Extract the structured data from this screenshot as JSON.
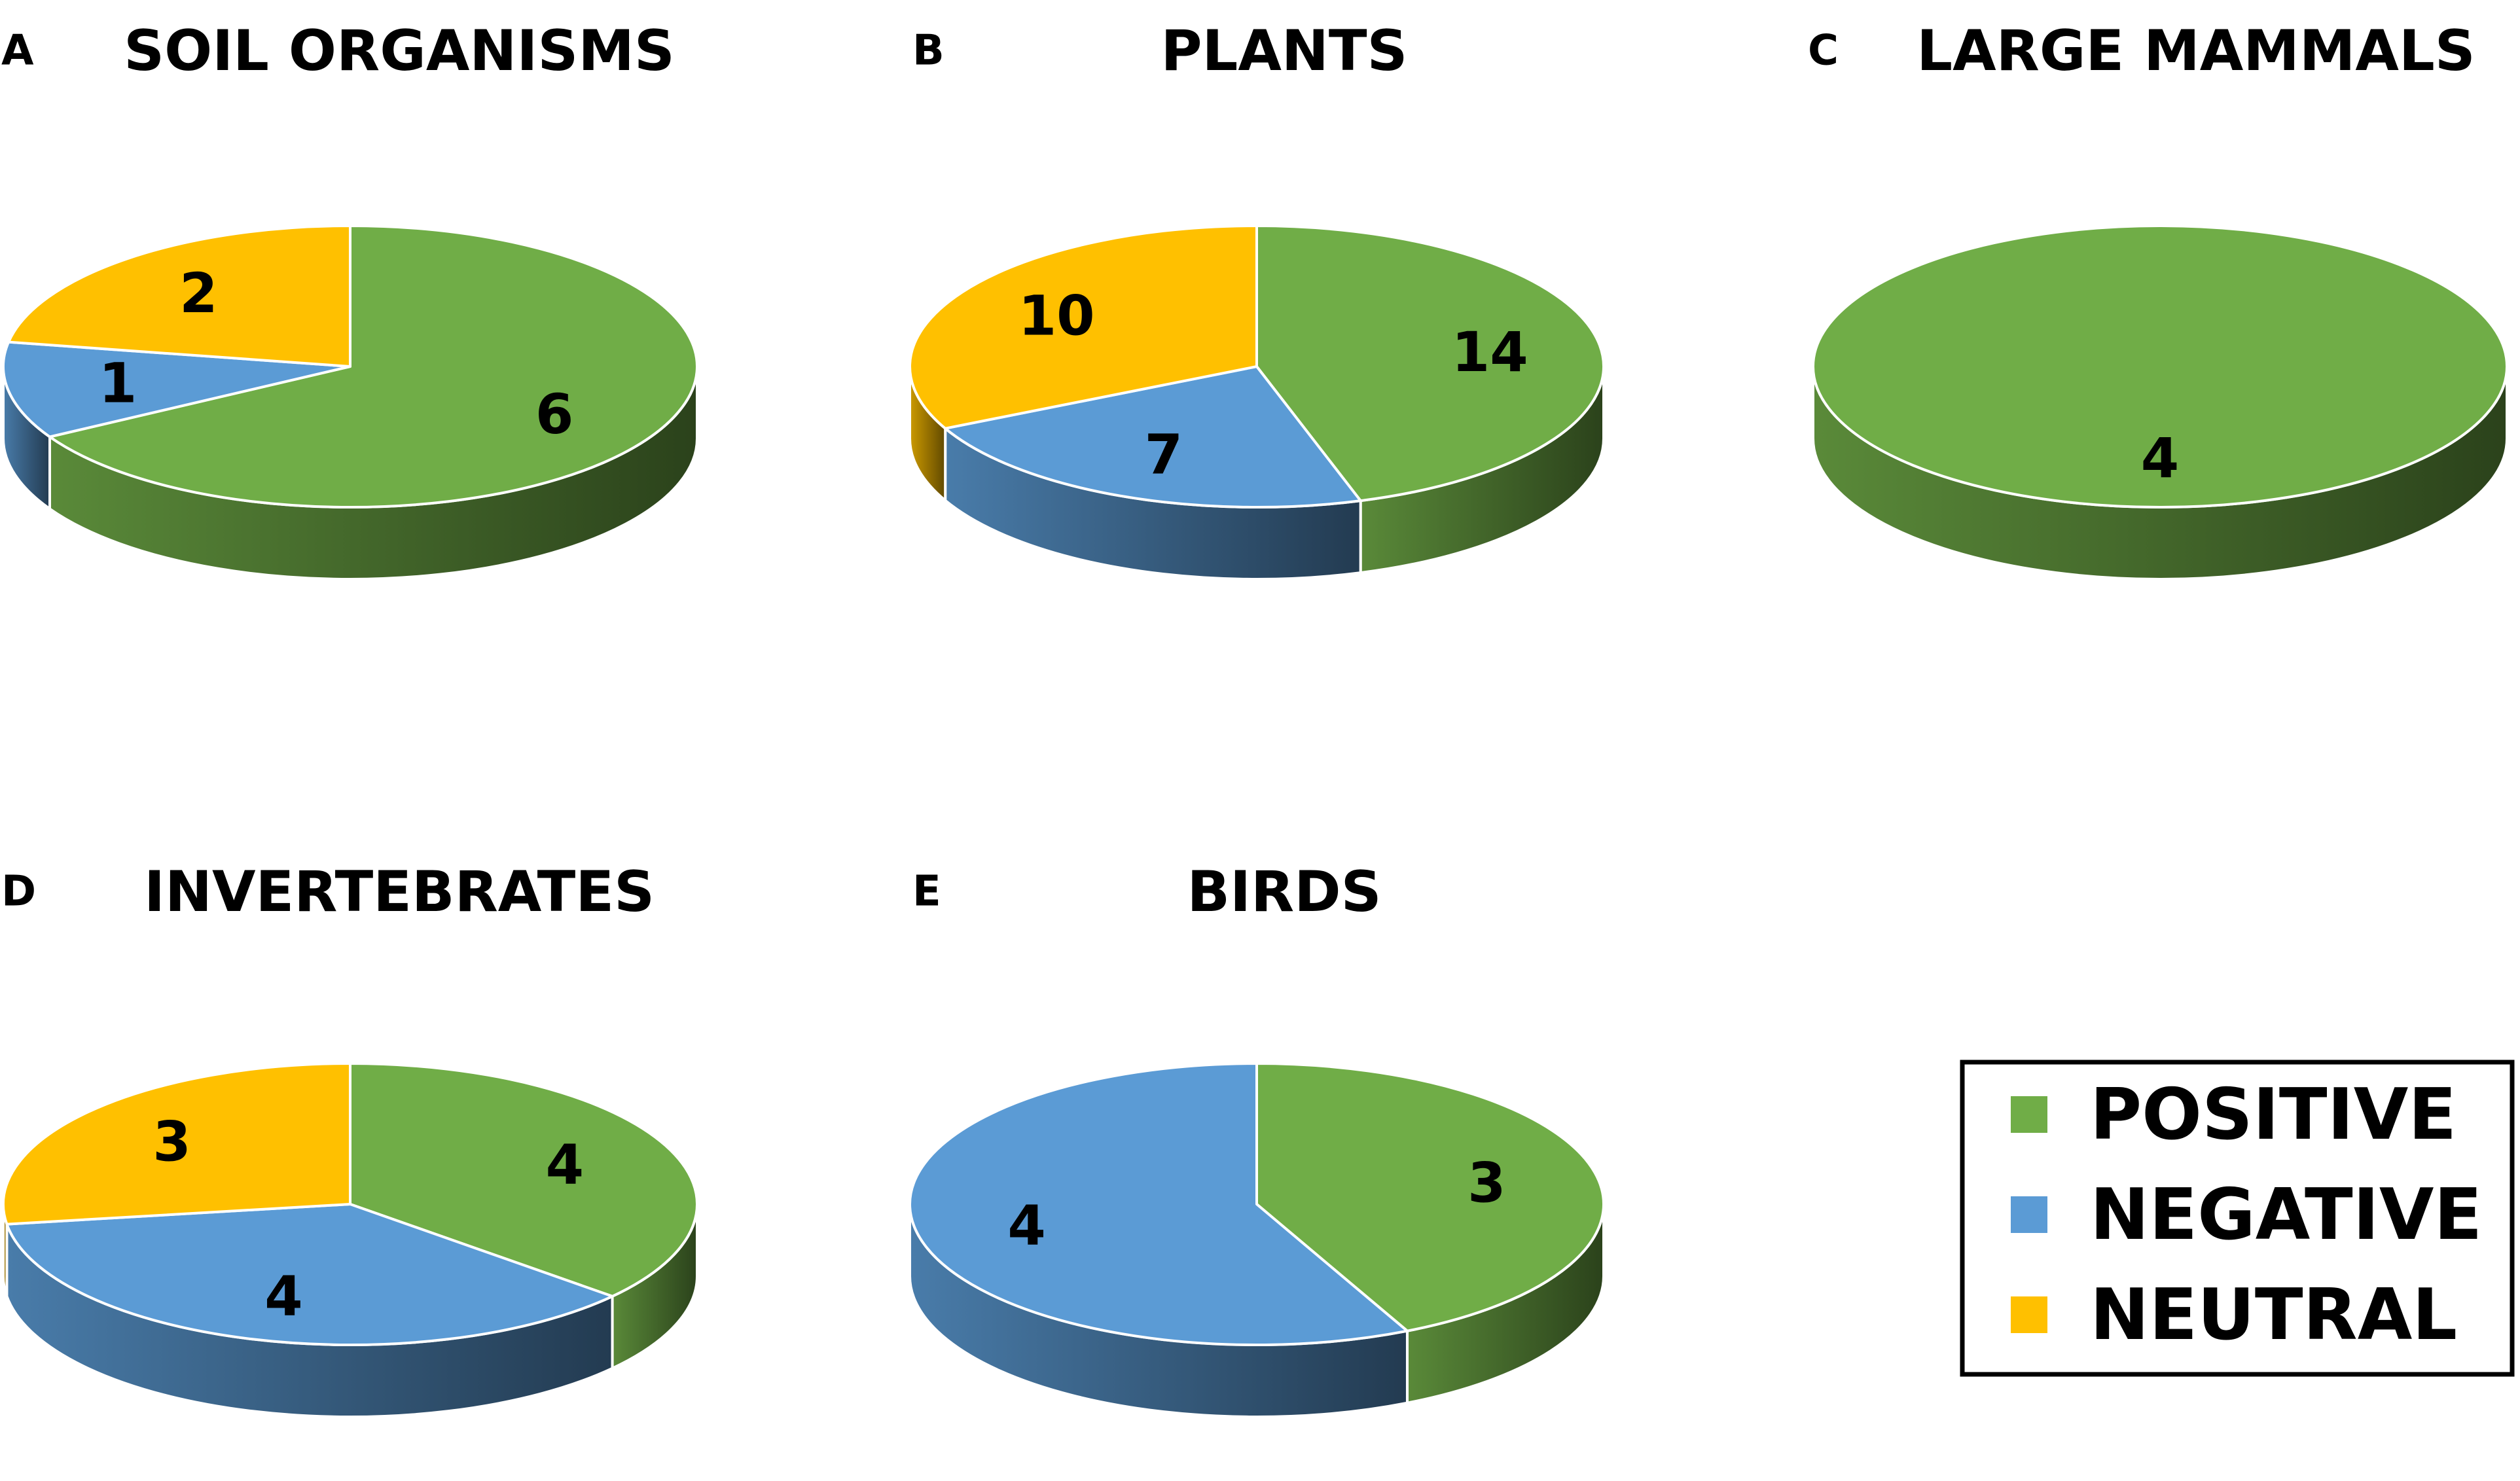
{
  "colors": {
    "positive": "#70AD47",
    "negative": "#5B9BD5",
    "neutral": "#FFC000"
  },
  "legend": {
    "items": [
      {
        "label": "POSITIVE",
        "color": "#70AD47"
      },
      {
        "label": "NEGATIVE",
        "color": "#5B9BD5"
      },
      {
        "label": "NEUTRAL",
        "color": "#FFC000"
      }
    ]
  },
  "chart_data": [
    {
      "type": "pie",
      "panel": "A",
      "title": "SOIL ORGANISMS",
      "categories": [
        "POSITIVE",
        "NEGATIVE",
        "NEUTRAL"
      ],
      "values": [
        6,
        1,
        2
      ]
    },
    {
      "type": "pie",
      "panel": "B",
      "title": "PLANTS",
      "categories": [
        "POSITIVE",
        "NEGATIVE",
        "NEUTRAL"
      ],
      "values": [
        14,
        7,
        10
      ]
    },
    {
      "type": "pie",
      "panel": "C",
      "title": "LARGE MAMMALS",
      "categories": [
        "POSITIVE"
      ],
      "values": [
        4
      ]
    },
    {
      "type": "pie",
      "panel": "D",
      "title": "INVERTEBRATES",
      "categories": [
        "POSITIVE",
        "NEGATIVE",
        "NEUTRAL"
      ],
      "values": [
        4,
        4,
        3
      ]
    },
    {
      "type": "pie",
      "panel": "E",
      "title": "BIRDS",
      "categories": [
        "POSITIVE",
        "NEGATIVE"
      ],
      "values": [
        3,
        4
      ]
    }
  ]
}
